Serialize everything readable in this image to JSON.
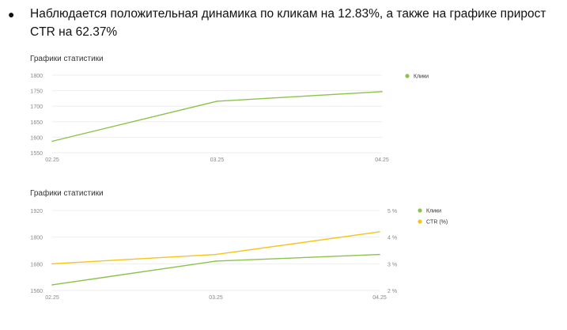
{
  "bullet": {
    "symbol": "●",
    "text": "Наблюдается положительная динамика по кликам на 12.83%, а также на графике прирост CTR на 62.37%"
  },
  "colors": {
    "clicks": "#8bc34a",
    "ctr": "#f5c518",
    "grid": "#eeeeee",
    "tick": "#888888"
  },
  "chart_data": [
    {
      "type": "line",
      "title": "Графики статистики",
      "categories": [
        "02.25",
        "03.25",
        "04.25"
      ],
      "ylim": [
        1550,
        1800
      ],
      "yticks": [
        "1550",
        "1600",
        "1650",
        "1700",
        "1750",
        "1800"
      ],
      "grid": true,
      "legend": "right",
      "series": [
        {
          "name": "Клики",
          "values": [
            1587,
            1716,
            1747
          ],
          "color": "#8bc34a"
        }
      ]
    },
    {
      "type": "line",
      "title": "Графики статистики",
      "categories": [
        "02.25",
        "03.25",
        "04.25"
      ],
      "ylim": [
        1560,
        1920
      ],
      "yticks": [
        "1560",
        "1680",
        "1800",
        "1920"
      ],
      "y2lim": [
        2,
        5
      ],
      "y2ticks": [
        "2 %",
        "3 %",
        "4 %",
        "5 %"
      ],
      "grid": true,
      "legend": "right",
      "series": [
        {
          "name": "Клики",
          "axis": "left",
          "values": [
            1585,
            1692,
            1722
          ],
          "color": "#8bc34a"
        },
        {
          "name": "CTR (%)",
          "axis": "right",
          "values": [
            3.0,
            3.35,
            4.2
          ],
          "color": "#f5c518"
        }
      ]
    }
  ]
}
